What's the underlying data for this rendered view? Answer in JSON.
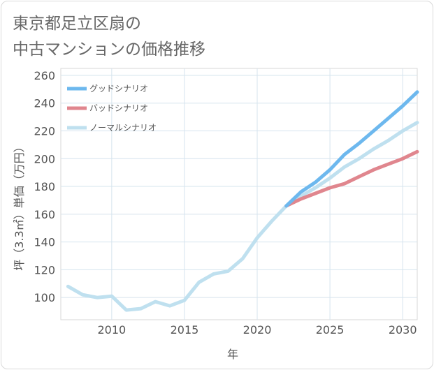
{
  "header": {
    "title_line1": "東京都足立区扇の",
    "title_line2": "中古マンションの価格推移"
  },
  "chart_data": {
    "type": "line",
    "title": "東京都足立区扇の中古マンションの価格推移",
    "xlabel": "年",
    "ylabel": "坪（3.3㎡）単価（万円）",
    "xlim": [
      2006.5,
      2031
    ],
    "ylim": [
      84,
      265
    ],
    "x_ticks": [
      2010,
      2015,
      2020,
      2025,
      2030
    ],
    "y_ticks": [
      100,
      120,
      140,
      160,
      180,
      200,
      220,
      240,
      260
    ],
    "grid": true,
    "legend_position": "top-left",
    "series": [
      {
        "name": "グッドシナリオ",
        "color": "#6db8ee",
        "x": [
          2022,
          2023,
          2024,
          2025,
          2026,
          2027,
          2028,
          2029,
          2030,
          2031
        ],
        "values": [
          166,
          176,
          183,
          192,
          203,
          211,
          220,
          229,
          238,
          248
        ]
      },
      {
        "name": "バッドシナリオ",
        "color": "#e0868e",
        "x": [
          2022,
          2023,
          2024,
          2025,
          2026,
          2027,
          2028,
          2029,
          2030,
          2031
        ],
        "values": [
          166,
          171,
          175,
          179,
          182,
          187,
          192,
          196,
          200,
          205
        ]
      },
      {
        "name": "ノーマルシナリオ",
        "color": "#bfe0ef",
        "x": [
          2007,
          2008,
          2009,
          2010,
          2011,
          2012,
          2013,
          2014,
          2015,
          2016,
          2017,
          2018,
          2019,
          2020,
          2021,
          2022,
          2023,
          2024,
          2025,
          2026,
          2027,
          2028,
          2029,
          2030,
          2031
        ],
        "values": [
          108,
          102,
          100,
          101,
          91,
          92,
          97,
          94,
          98,
          111,
          117,
          119,
          128,
          143,
          155,
          166,
          173,
          179,
          186,
          194,
          200,
          207,
          213,
          220,
          226
        ]
      }
    ]
  }
}
